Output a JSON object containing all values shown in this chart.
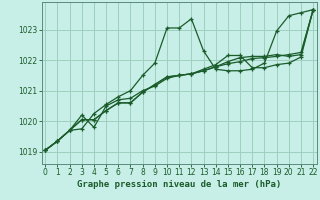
{
  "background_color": "#c8eee8",
  "grid_color": "#9ecfbe",
  "line_color": "#1a5c2a",
  "marker": "+",
  "title": "Graphe pression niveau de la mer (hPa)",
  "xlim": [
    -0.3,
    22.3
  ],
  "ylim": [
    1018.6,
    1023.9
  ],
  "yticks": [
    1019,
    1020,
    1021,
    1022,
    1023
  ],
  "xticks": [
    0,
    1,
    2,
    3,
    4,
    5,
    6,
    7,
    8,
    9,
    10,
    11,
    12,
    13,
    14,
    15,
    16,
    17,
    18,
    19,
    20,
    21,
    22
  ],
  "series": [
    [
      1019.05,
      1019.35,
      1019.7,
      1019.75,
      1020.25,
      1020.55,
      1020.8,
      1021.0,
      1021.5,
      1021.9,
      1023.05,
      1023.05,
      1023.35,
      1022.3,
      1021.7,
      1021.65,
      1021.65,
      1021.7,
      1021.9,
      1022.95,
      1023.45,
      1023.55,
      1023.65
    ],
    [
      1019.05,
      1019.35,
      1019.7,
      1020.2,
      1019.8,
      1020.5,
      1020.7,
      1020.75,
      1021.0,
      1021.15,
      1021.4,
      1021.5,
      1021.55,
      1021.7,
      1021.85,
      1022.15,
      1022.15,
      1021.75,
      1021.75,
      1021.85,
      1021.9,
      1022.1,
      1023.65
    ],
    [
      1019.05,
      1019.35,
      1019.7,
      1020.05,
      1020.05,
      1020.35,
      1020.6,
      1020.6,
      1020.95,
      1021.2,
      1021.45,
      1021.5,
      1021.55,
      1021.65,
      1021.78,
      1021.88,
      1021.95,
      1022.05,
      1022.08,
      1022.12,
      1022.18,
      1022.25,
      1023.65
    ],
    [
      1019.05,
      1019.35,
      1019.7,
      1020.05,
      1020.05,
      1020.35,
      1020.6,
      1020.6,
      1020.95,
      1021.2,
      1021.45,
      1021.5,
      1021.55,
      1021.65,
      1021.78,
      1021.95,
      1022.08,
      1022.12,
      1022.12,
      1022.18,
      1022.12,
      1022.18,
      1023.65
    ]
  ]
}
